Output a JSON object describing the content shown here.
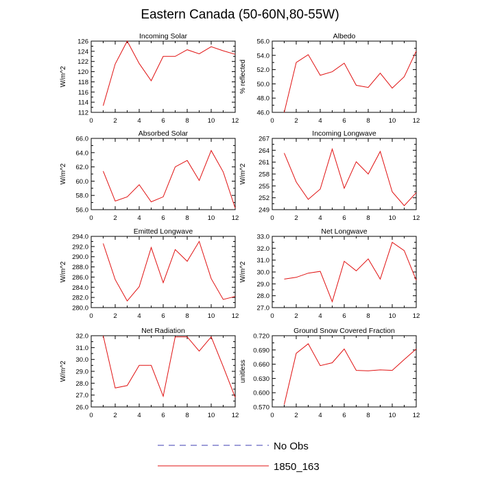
{
  "title": "Eastern Canada (50-60N,80-55W)",
  "legend": {
    "items": [
      {
        "label": "No Obs",
        "color": "#3b3bb0",
        "dashed": true
      },
      {
        "label": "1850_163",
        "color": "#e01010",
        "dashed": false
      }
    ]
  },
  "chart_data": [
    {
      "type": "line",
      "title": "Incoming Solar",
      "xlabel": "",
      "ylabel": "W/m^2",
      "xlim": [
        0,
        12
      ],
      "ylim": [
        112,
        126
      ],
      "yticks": [
        "112",
        "114",
        "116",
        "118",
        "120",
        "122",
        "124",
        "126"
      ],
      "ytick_values": [
        112,
        114,
        116,
        118,
        120,
        122,
        124,
        126
      ],
      "xticks": [
        "0",
        "2",
        "4",
        "6",
        "8",
        "10",
        "12"
      ],
      "series": [
        {
          "name": "1850_163",
          "color": "#e01010",
          "x": [
            1,
            2,
            3,
            4,
            5,
            6,
            7,
            8,
            9,
            10,
            11,
            12
          ],
          "y": [
            113.3,
            121.5,
            126.0,
            121.6,
            118.2,
            123.0,
            123.0,
            124.3,
            123.5,
            124.9,
            124.1,
            123.4
          ]
        }
      ]
    },
    {
      "type": "line",
      "title": "Albedo",
      "xlabel": "",
      "ylabel": "% reflected",
      "xlim": [
        0,
        12
      ],
      "ylim": [
        46,
        56
      ],
      "yticks": [
        "46.0",
        "48.0",
        "50.0",
        "52.0",
        "54.0",
        "56.0"
      ],
      "ytick_values": [
        46,
        48,
        50,
        52,
        54,
        56
      ],
      "xticks": [
        "0",
        "2",
        "4",
        "6",
        "8",
        "10",
        "12"
      ],
      "series": [
        {
          "name": "1850_163",
          "color": "#e01010",
          "x": [
            1,
            2,
            3,
            4,
            5,
            6,
            7,
            8,
            9,
            10,
            11,
            12
          ],
          "y": [
            46.0,
            53.0,
            54.1,
            51.2,
            51.7,
            52.9,
            49.8,
            49.5,
            51.5,
            49.4,
            51.0,
            54.6
          ]
        }
      ]
    },
    {
      "type": "line",
      "title": "Absorbed Solar",
      "xlabel": "",
      "ylabel": "W/m^2",
      "xlim": [
        0,
        12
      ],
      "ylim": [
        56,
        66
      ],
      "yticks": [
        "56.0",
        "58.0",
        "60.0",
        "62.0",
        "64.0",
        "66.0"
      ],
      "ytick_values": [
        56,
        58,
        60,
        62,
        64,
        66
      ],
      "xticks": [
        "0",
        "2",
        "4",
        "6",
        "8",
        "10",
        "12"
      ],
      "series": [
        {
          "name": "1850_163",
          "color": "#e01010",
          "x": [
            1,
            2,
            3,
            4,
            5,
            6,
            7,
            8,
            9,
            10,
            11,
            12
          ],
          "y": [
            61.4,
            57.2,
            57.8,
            59.5,
            57.1,
            57.8,
            62.0,
            62.9,
            60.1,
            64.3,
            61.3,
            56.2
          ]
        }
      ]
    },
    {
      "type": "line",
      "title": "Incoming Longwave",
      "xlabel": "",
      "ylabel": "W/m^2",
      "xlim": [
        0,
        12
      ],
      "ylim": [
        249,
        267
      ],
      "yticks": [
        "249",
        "252",
        "255",
        "258",
        "261",
        "264",
        "267"
      ],
      "ytick_values": [
        249,
        252,
        255,
        258,
        261,
        264,
        267
      ],
      "xticks": [
        "0",
        "2",
        "4",
        "6",
        "8",
        "10",
        "12"
      ],
      "series": [
        {
          "name": "1850_163",
          "color": "#e01010",
          "x": [
            1,
            2,
            3,
            4,
            5,
            6,
            7,
            8,
            9,
            10,
            11,
            12
          ],
          "y": [
            263.3,
            256.0,
            251.6,
            254.2,
            264.3,
            254.4,
            261.1,
            258.0,
            263.7,
            253.5,
            250.0,
            253.3
          ]
        }
      ]
    },
    {
      "type": "line",
      "title": "Emitted Longwave",
      "xlabel": "",
      "ylabel": "W/m^2",
      "xlim": [
        0,
        12
      ],
      "ylim": [
        280,
        294
      ],
      "yticks": [
        "280.0",
        "282.0",
        "284.0",
        "286.0",
        "288.0",
        "290.0",
        "292.0",
        "294.0"
      ],
      "ytick_values": [
        280,
        282,
        284,
        286,
        288,
        290,
        292,
        294
      ],
      "xticks": [
        "0",
        "2",
        "4",
        "6",
        "8",
        "10",
        "12"
      ],
      "series": [
        {
          "name": "1850_163",
          "color": "#e01010",
          "x": [
            1,
            2,
            3,
            4,
            5,
            6,
            7,
            8,
            9,
            10,
            11,
            12
          ],
          "y": [
            292.6,
            285.5,
            281.3,
            284.1,
            291.8,
            284.9,
            291.4,
            289.1,
            293.0,
            285.7,
            281.6,
            282.2
          ]
        }
      ]
    },
    {
      "type": "line",
      "title": "Net Longwave",
      "xlabel": "",
      "ylabel": "W/m^2",
      "xlim": [
        0,
        12
      ],
      "ylim": [
        27,
        33
      ],
      "yticks": [
        "27.0",
        "28.0",
        "29.0",
        "30.0",
        "31.0",
        "32.0",
        "33.0"
      ],
      "ytick_values": [
        27,
        28,
        29,
        30,
        31,
        32,
        33
      ],
      "xticks": [
        "0",
        "2",
        "4",
        "6",
        "8",
        "10",
        "12"
      ],
      "series": [
        {
          "name": "1850_163",
          "color": "#e01010",
          "x": [
            1,
            2,
            3,
            4,
            5,
            6,
            7,
            8,
            9,
            10,
            11,
            12
          ],
          "y": [
            29.4,
            29.55,
            29.9,
            30.05,
            27.5,
            30.9,
            30.1,
            31.1,
            29.4,
            32.5,
            31.8,
            29.3
          ]
        }
      ]
    },
    {
      "type": "line",
      "title": "Net Radiation",
      "xlabel": "",
      "ylabel": "W/m^2",
      "xlim": [
        0,
        12
      ],
      "ylim": [
        26,
        32
      ],
      "yticks": [
        "26.0",
        "27.0",
        "28.0",
        "29.0",
        "30.0",
        "31.0",
        "32.0"
      ],
      "ytick_values": [
        26,
        27,
        28,
        29,
        30,
        31,
        32
      ],
      "xticks": [
        "0",
        "2",
        "4",
        "6",
        "8",
        "10",
        "12"
      ],
      "series": [
        {
          "name": "1850_163",
          "color": "#e01010",
          "x": [
            1,
            2,
            3,
            4,
            5,
            6,
            7,
            8,
            9,
            10,
            11,
            12
          ],
          "y": [
            32.0,
            27.6,
            27.8,
            29.5,
            29.5,
            26.9,
            31.9,
            31.9,
            30.7,
            31.9,
            29.4,
            26.8
          ]
        }
      ]
    },
    {
      "type": "line",
      "title": "Ground Snow Covered Fraction",
      "xlabel": "",
      "ylabel": "unitless",
      "xlim": [
        0,
        12
      ],
      "ylim": [
        0.57,
        0.72
      ],
      "yticks": [
        "0.570",
        "0.600",
        "0.630",
        "0.660",
        "0.690",
        "0.720"
      ],
      "ytick_values": [
        0.57,
        0.6,
        0.63,
        0.66,
        0.69,
        0.72
      ],
      "xticks": [
        "0",
        "2",
        "4",
        "6",
        "8",
        "10",
        "12"
      ],
      "series": [
        {
          "name": "1850_163",
          "color": "#e01010",
          "x": [
            1,
            2,
            3,
            4,
            5,
            6,
            7,
            8,
            9,
            10,
            11,
            12
          ],
          "y": [
            0.575,
            0.683,
            0.703,
            0.657,
            0.663,
            0.692,
            0.647,
            0.646,
            0.648,
            0.647,
            0.67,
            0.692
          ]
        }
      ]
    }
  ]
}
